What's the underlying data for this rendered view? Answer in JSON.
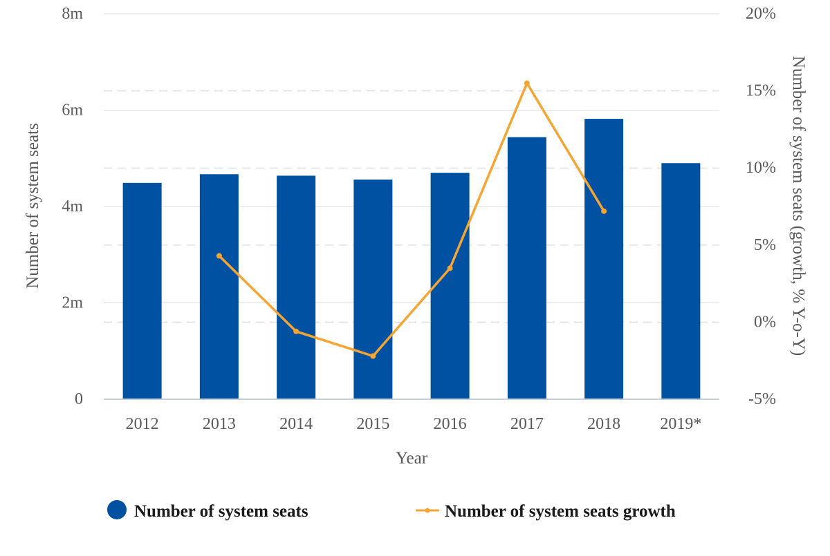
{
  "chart_data": {
    "type": "bar",
    "categories": [
      "2012",
      "2013",
      "2014",
      "2015",
      "2016",
      "2017",
      "2018",
      "2019*"
    ],
    "xlabel": "Year",
    "ylabel": "Number of system seats",
    "y2label": "Number of system seats (growth, % Y-o-Y)",
    "ylim": [
      0,
      8000000
    ],
    "y2lim": [
      -5,
      20
    ],
    "yticks": [
      {
        "value": 0,
        "label": "0"
      },
      {
        "value": 2000000,
        "label": "2m"
      },
      {
        "value": 4000000,
        "label": "4m"
      },
      {
        "value": 6000000,
        "label": "6m"
      },
      {
        "value": 8000000,
        "label": "8m"
      }
    ],
    "y2ticks": [
      {
        "value": -5,
        "label": "-5%"
      },
      {
        "value": 0,
        "label": "0%"
      },
      {
        "value": 5,
        "label": "5%"
      },
      {
        "value": 10,
        "label": "10%"
      },
      {
        "value": 15,
        "label": "15%"
      },
      {
        "value": 20,
        "label": "20%"
      }
    ],
    "grid": true,
    "legend_position": "bottom",
    "series": [
      {
        "name": "Number of system seats",
        "type": "bar",
        "axis": "left",
        "color": "#0051a2",
        "values": [
          4490000,
          4670000,
          4640000,
          4560000,
          4700000,
          5440000,
          5820000,
          4900000
        ]
      },
      {
        "name": "Number of system seats growth",
        "type": "line",
        "axis": "right",
        "color": "#f5a533",
        "values": [
          null,
          4.3,
          -0.6,
          -2.2,
          3.5,
          15.5,
          7.2,
          null
        ]
      }
    ]
  }
}
